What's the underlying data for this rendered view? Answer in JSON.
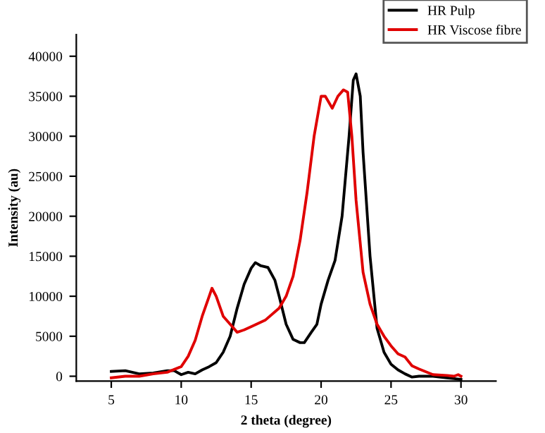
{
  "chart_data": {
    "type": "line",
    "xlabel": "2 theta (degree)",
    "ylabel": "Intensity (au)",
    "xlim": [
      2.5,
      32.5
    ],
    "ylim": [
      -600,
      42700
    ],
    "xticks": [
      5,
      10,
      15,
      20,
      25,
      30
    ],
    "yticks": [
      0,
      5000,
      10000,
      15000,
      20000,
      25000,
      30000,
      35000,
      40000
    ],
    "grid": false,
    "legend": "top right",
    "line_style": "solid",
    "marker": "none",
    "series": [
      {
        "name": "HR Pulp",
        "color": "#000000",
        "x": [
          5,
          6,
          7,
          8,
          9,
          9.5,
          10,
          10.5,
          11,
          11.5,
          12,
          12.5,
          13,
          13.5,
          14,
          14.5,
          15,
          15.3,
          15.7,
          16.2,
          16.7,
          17,
          17.5,
          18,
          18.5,
          18.8,
          19.3,
          19.7,
          20,
          20.5,
          21,
          21.5,
          22,
          22.3,
          22.5,
          22.8,
          23,
          23.5,
          24,
          24.5,
          25,
          25.5,
          26,
          26.5,
          27,
          28,
          29,
          29.5,
          30
        ],
        "values": [
          600,
          700,
          300,
          400,
          700,
          700,
          200,
          500,
          300,
          800,
          1200,
          1700,
          3000,
          5000,
          8500,
          11500,
          13500,
          14200,
          13800,
          13600,
          12000,
          10000,
          6500,
          4600,
          4200,
          4200,
          5500,
          6500,
          9000,
          12000,
          14500,
          20000,
          30000,
          37000,
          37800,
          35000,
          28000,
          15000,
          6000,
          3000,
          1500,
          800,
          300,
          -100,
          0,
          0,
          -200,
          -300,
          -400
        ]
      },
      {
        "name": "HR Viscose fibre",
        "color": "#e00000",
        "x": [
          5,
          6,
          7,
          8,
          9,
          10,
          10.5,
          11,
          11.5,
          12,
          12.2,
          12.5,
          13,
          13.5,
          14,
          14.5,
          15,
          16,
          17,
          17.5,
          18,
          18.5,
          19,
          19.5,
          20,
          20.3,
          20.8,
          21.2,
          21.6,
          21.9,
          22.2,
          22.5,
          23,
          23.5,
          24,
          24.5,
          25,
          25.5,
          26,
          26.5,
          27,
          28,
          29,
          29.5,
          29.8,
          30
        ],
        "values": [
          -200,
          0,
          0,
          300,
          500,
          1200,
          2500,
          4500,
          7500,
          10000,
          11000,
          10000,
          7500,
          6500,
          5500,
          5800,
          6200,
          7000,
          8500,
          10000,
          12500,
          17000,
          23000,
          30000,
          35000,
          35000,
          33500,
          35000,
          35800,
          35500,
          30000,
          22000,
          13000,
          9000,
          6500,
          5000,
          3800,
          2800,
          2400,
          1300,
          900,
          200,
          100,
          0,
          200,
          0
        ]
      }
    ]
  }
}
